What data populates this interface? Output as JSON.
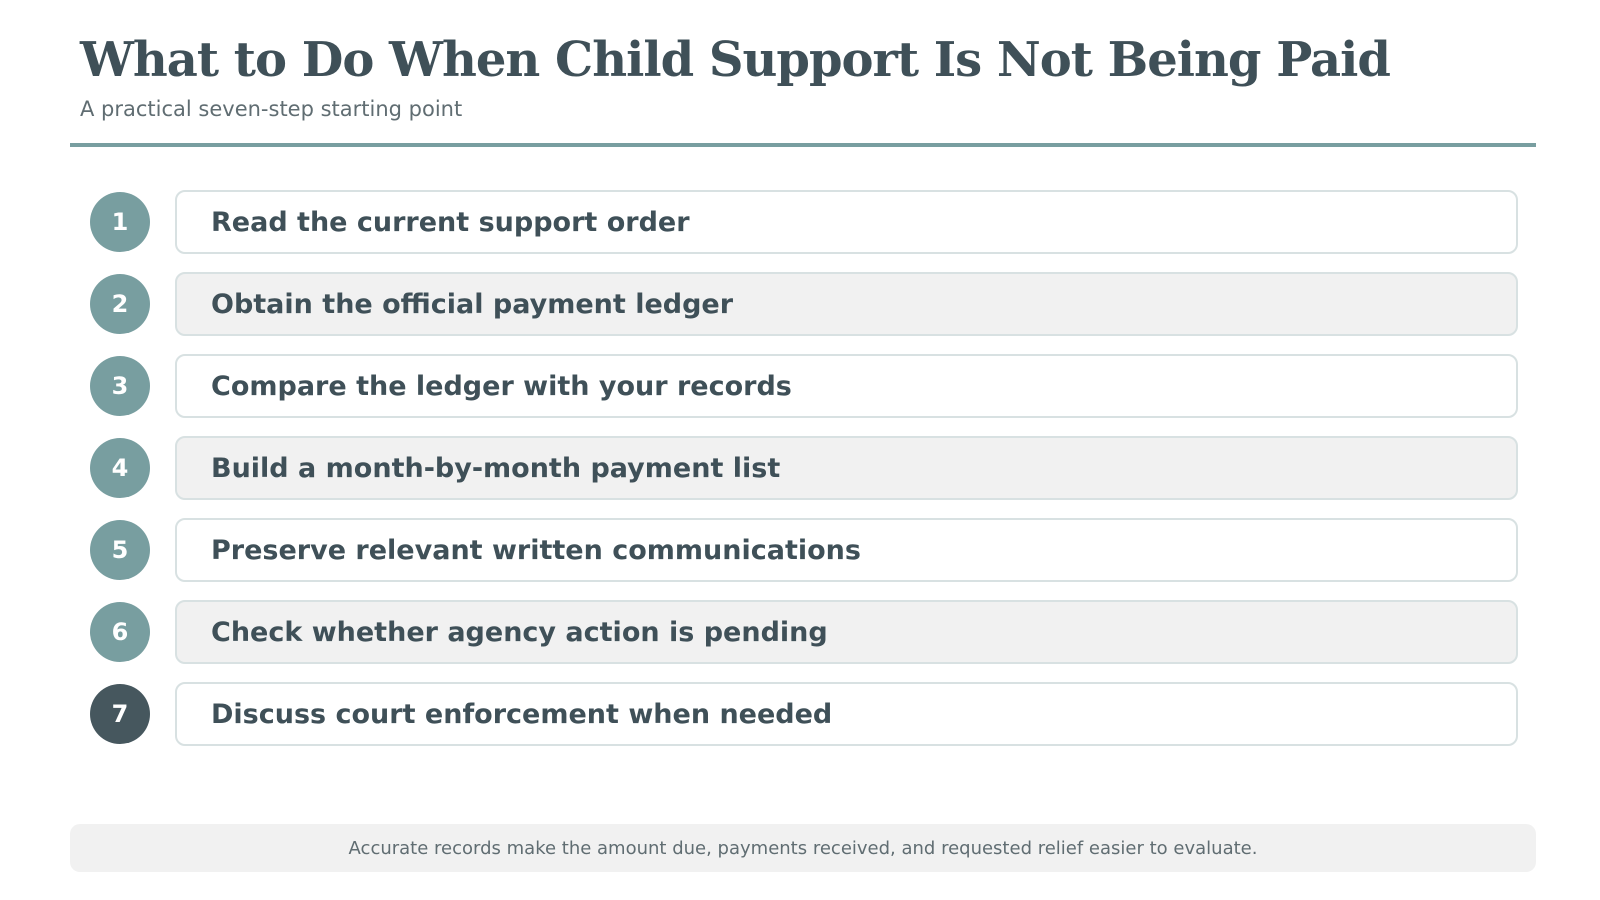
{
  "header": {
    "title": "What to Do When Child Support Is Not Being Paid",
    "subtitle": "A practical seven-step starting point"
  },
  "steps": [
    {
      "number": "1",
      "label": "Read the current support order"
    },
    {
      "number": "2",
      "label": "Obtain the official payment ledger"
    },
    {
      "number": "3",
      "label": "Compare the ledger with your records"
    },
    {
      "number": "4",
      "label": "Build a month-by-month payment list"
    },
    {
      "number": "5",
      "label": "Preserve relevant written communications"
    },
    {
      "number": "6",
      "label": "Check whether agency action is pending"
    },
    {
      "number": "7",
      "label": "Discuss court enforcement when needed"
    }
  ],
  "footer": {
    "note": "Accurate records make the amount due, payments received, and requested relief easier to evaluate."
  },
  "colors": {
    "accent": "#789ea0",
    "final_step": "#46575e",
    "text": "#3f5058",
    "shaded_card": "#f1f1f1"
  }
}
